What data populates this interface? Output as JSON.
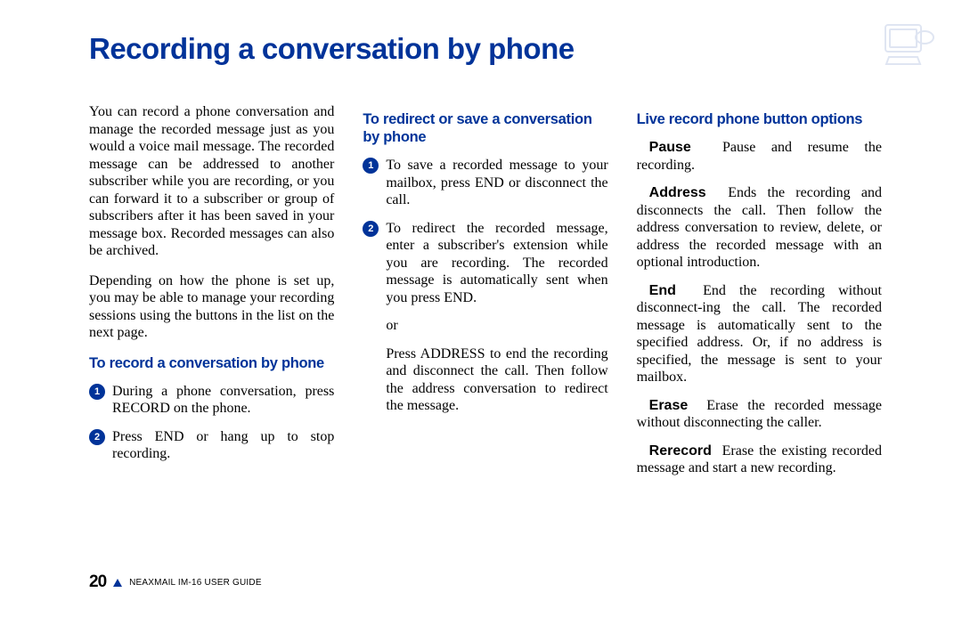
{
  "colors": {
    "accent": "#003399",
    "text": "#000000",
    "background": "#ffffff"
  },
  "title": "Recording a conversation by phone",
  "col1": {
    "intro1": "You can record a phone conversation and manage the recorded message just as you would a voice mail message. The recorded message can be addressed to another subscriber while you are recording, or you can forward it to a subscriber or group of subscribers after it has been saved in your message box. Recorded messages can also be archived.",
    "intro2": "Depending on how the phone is set up, you may be able to manage your recording sessions using the buttons in the list on the next page.",
    "heading": "To record a conversation by phone",
    "step1": "During a phone conversation, press RECORD on the phone.",
    "step2": "Press END or hang up to stop recording."
  },
  "col2": {
    "heading": "To redirect or save a conversation by phone",
    "step1": "To save a recorded message to your mailbox, press END or disconnect the call.",
    "step2": "To redirect the recorded message, enter a subscriber's extension while you are recording. The recorded message is automatically sent when you press END.",
    "or": "or",
    "after": "Press ADDRESS to end the recording and disconnect the call. Then follow the address conversation to redirect the message."
  },
  "col3": {
    "heading": "Live record phone button options",
    "defs": [
      {
        "label": "Pause",
        "text": "Pause and resume the recording."
      },
      {
        "label": "Address",
        "text": "Ends the recording and disconnects the call. Then follow the address conversation to review, delete, or address the recorded message with an optional introduction."
      },
      {
        "label": "End",
        "text": "End the recording without disconnect-ing the call. The recorded message is automatically sent to the specified address. Or, if no address is specified, the message is sent to your mailbox."
      },
      {
        "label": "Erase",
        "text": "Erase the recorded message without disconnecting the caller."
      },
      {
        "label": "Rerecord",
        "text": "Erase the existing recorded message and start a new recording."
      }
    ]
  },
  "footer": {
    "page": "20",
    "guide": "NEAXMAIL IM-16 USER GUIDE"
  }
}
